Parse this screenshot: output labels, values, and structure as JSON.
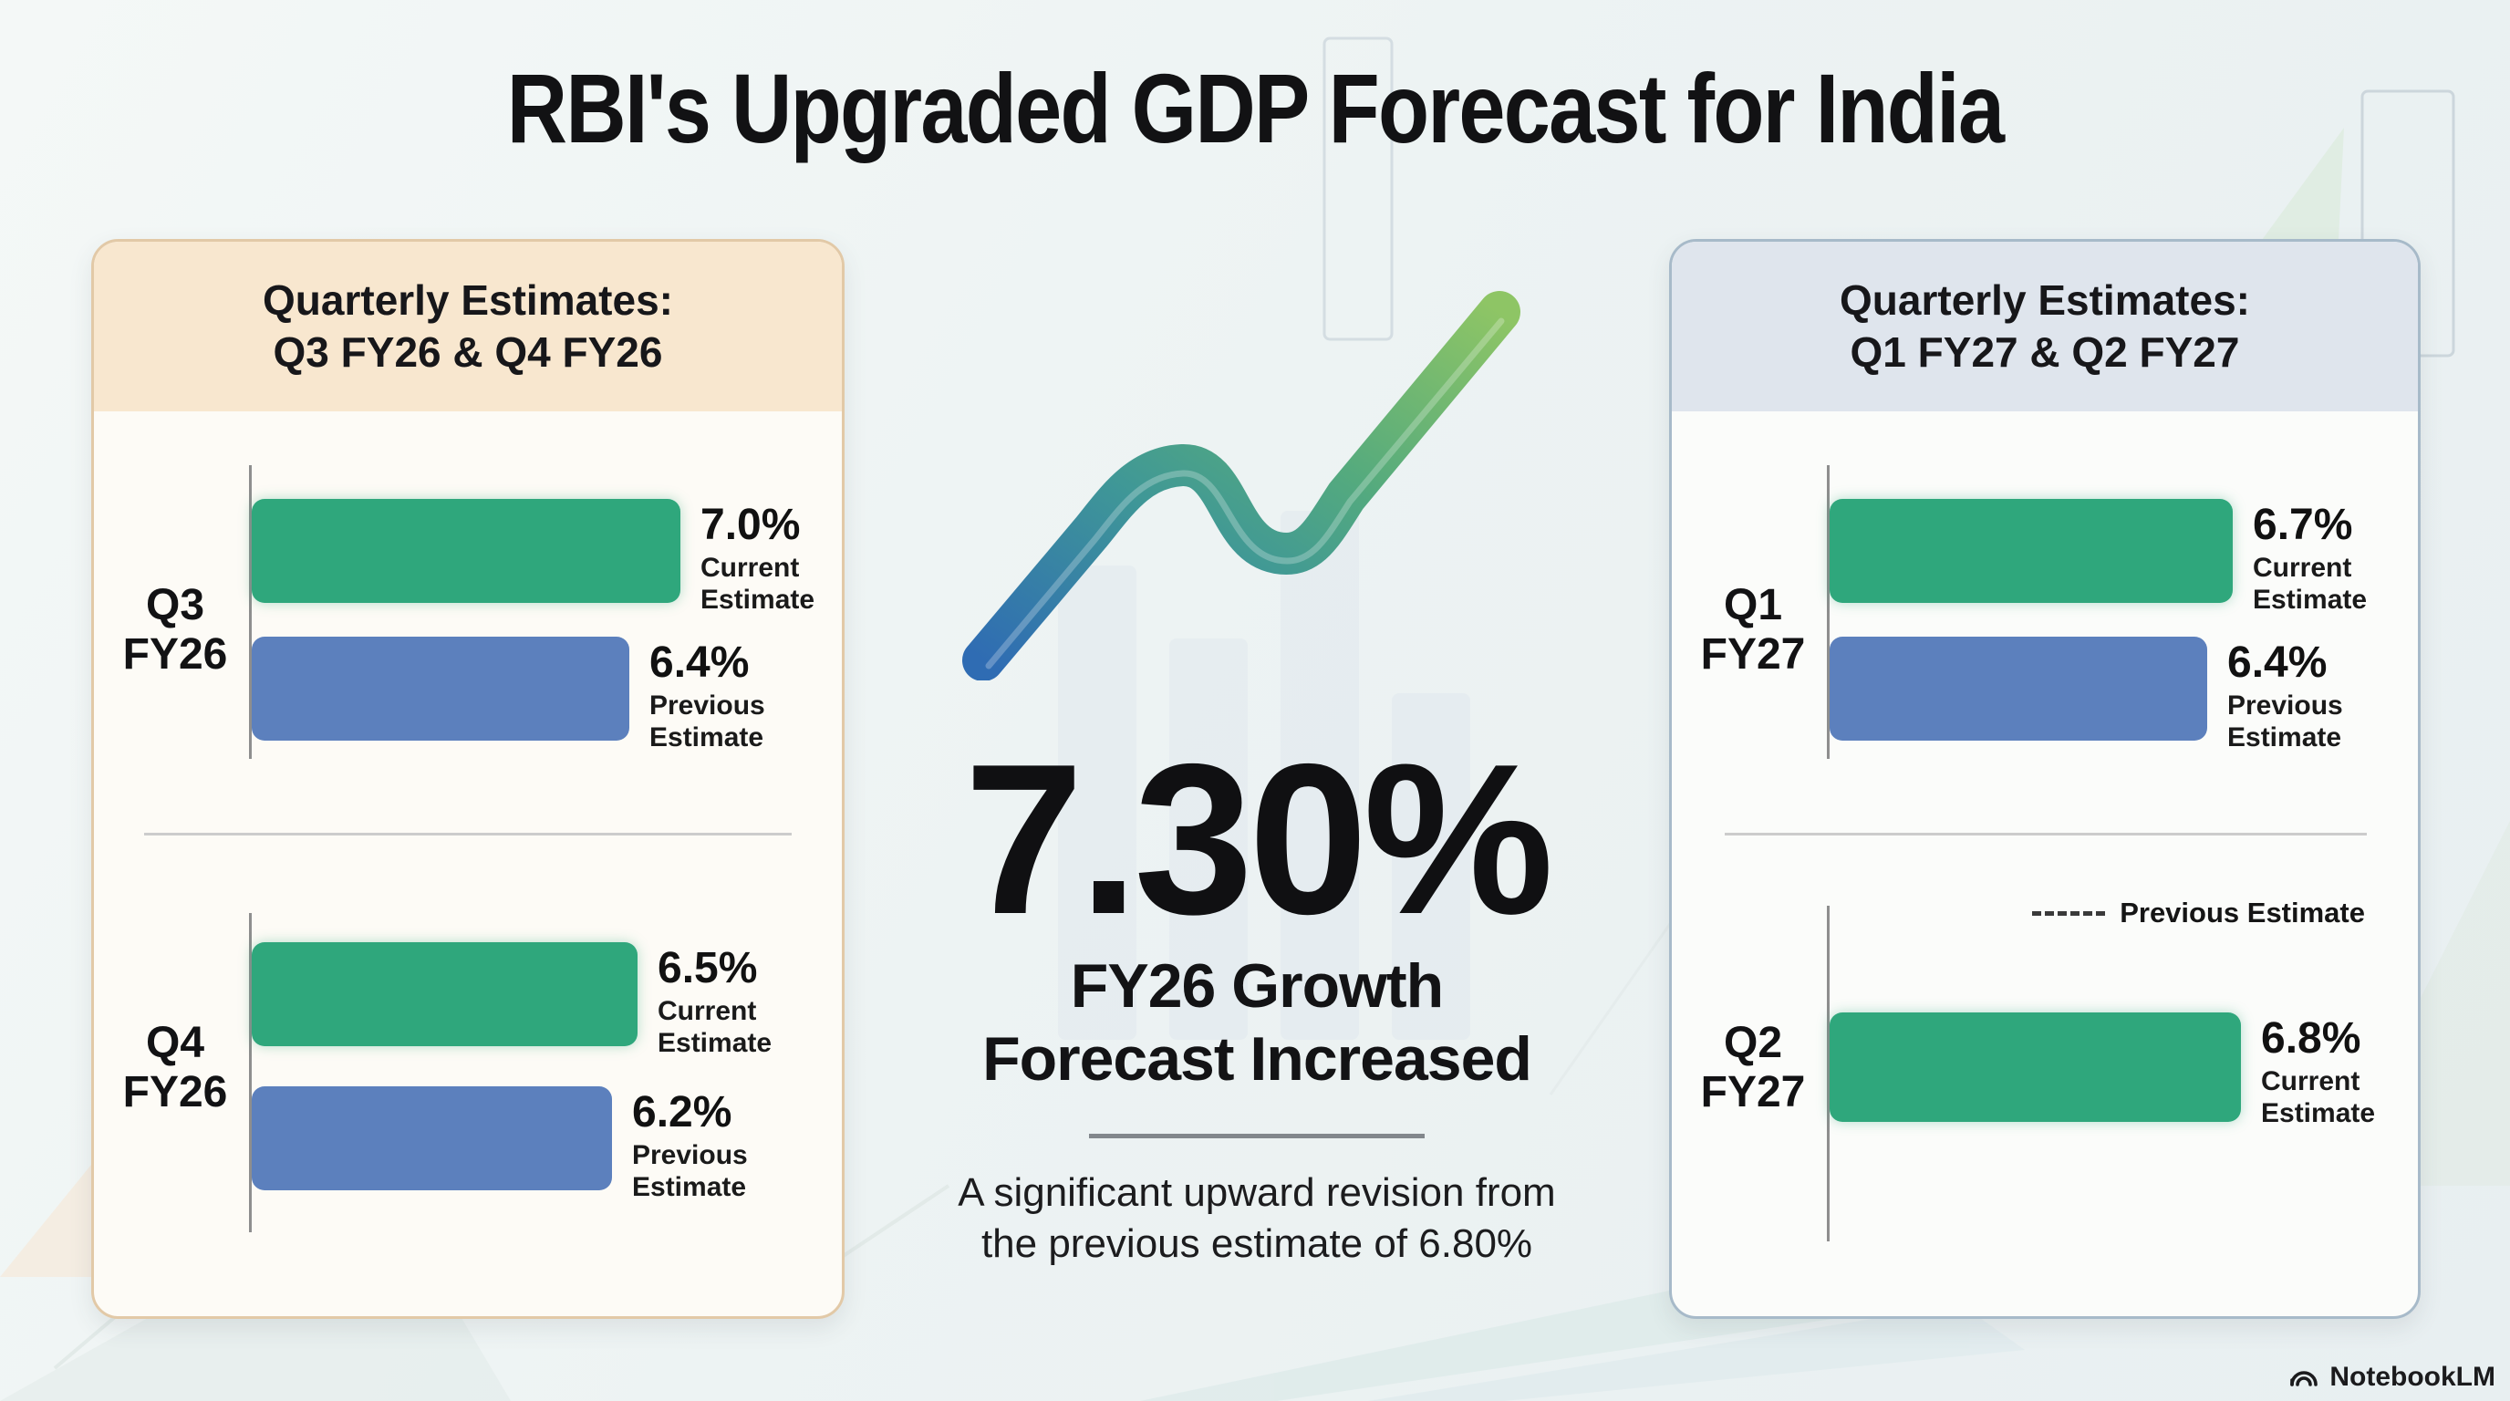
{
  "title": "RBI's Upgraded GDP Forecast for India",
  "colors": {
    "green": "#2fa77c",
    "blue": "#5c80bd",
    "left_header_bg": "#f8e7cf",
    "left_card_bg": "#fdfbf6",
    "left_card_border": "#e2c9a7",
    "right_header_bg": "#dfe5ed",
    "right_card_bg": "#fbfcfa",
    "right_card_border": "#a7bac9",
    "axis": "#8e8e8e",
    "divider": "#cccccc",
    "text": "#141416"
  },
  "panels": [
    {
      "header": [
        "Quarterly Estimates:",
        "Q3 FY26 & Q4 FY26"
      ],
      "rows": [
        {
          "quarter": [
            "Q3",
            "FY26"
          ],
          "bars": [
            {
              "value": 7.0,
              "value_label": "7.0%",
              "caption": [
                "Current",
                "Estimate"
              ],
              "color": "green"
            },
            {
              "value": 6.4,
              "value_label": "6.4%",
              "caption": [
                "Previous",
                "Estimate"
              ],
              "color": "blue"
            }
          ]
        },
        {
          "quarter": [
            "Q4",
            "FY26"
          ],
          "bars": [
            {
              "value": 6.5,
              "value_label": "6.5%",
              "caption": [
                "Current",
                "Estimate"
              ],
              "color": "green"
            },
            {
              "value": 6.2,
              "value_label": "6.2%",
              "caption": [
                "Previous",
                "Estimate"
              ],
              "color": "blue"
            }
          ]
        }
      ]
    },
    {
      "header": [
        "Quarterly Estimates:",
        "Q1 FY27 & Q2 FY27"
      ],
      "legend_label": "Previous Estimate",
      "rows": [
        {
          "quarter": [
            "Q1",
            "FY27"
          ],
          "bars": [
            {
              "value": 6.7,
              "value_label": "6.7%",
              "caption": [
                "Current",
                "Estimate"
              ],
              "color": "green"
            },
            {
              "value": 6.4,
              "value_label": "6.4%",
              "caption": [
                "Previous",
                "Estimate"
              ],
              "color": "blue"
            }
          ]
        },
        {
          "quarter": [
            "Q2",
            "FY27"
          ],
          "bars": [
            {
              "value": 6.8,
              "value_label": "6.8%",
              "caption": [
                "Current",
                "Estimate"
              ],
              "color": "green"
            }
          ]
        }
      ]
    }
  ],
  "center": {
    "big_number": "7.30%",
    "headline": [
      "FY26 Growth",
      "Forecast Increased"
    ],
    "subtitle": [
      "A significant upward revision from",
      "the previous estimate of 6.80%"
    ]
  },
  "footer": {
    "brand": "NotebookLM"
  },
  "chart_data": [
    {
      "type": "bar",
      "orientation": "horizontal",
      "title": "Quarterly Estimates: Q3 FY26 & Q4 FY26",
      "categories": [
        "Q3 FY26",
        "Q4 FY26"
      ],
      "series": [
        {
          "name": "Current Estimate",
          "values": [
            7.0,
            6.5
          ],
          "color": "#2fa77c"
        },
        {
          "name": "Previous Estimate",
          "values": [
            6.4,
            6.2
          ],
          "color": "#5c80bd"
        }
      ],
      "unit": "percent",
      "xlim": [
        0,
        8
      ],
      "grid": false,
      "value_labels": [
        "7.0%",
        "6.5%",
        "6.4%",
        "6.2%"
      ]
    },
    {
      "type": "bar",
      "orientation": "horizontal",
      "title": "Quarterly Estimates: Q1 FY27 & Q2 FY27",
      "categories": [
        "Q1 FY27",
        "Q2 FY27"
      ],
      "series": [
        {
          "name": "Current Estimate",
          "values": [
            6.7,
            6.8
          ],
          "color": "#2fa77c"
        },
        {
          "name": "Previous Estimate",
          "values": [
            6.4,
            null
          ],
          "color": "#5c80bd"
        }
      ],
      "unit": "percent",
      "xlim": [
        0,
        8
      ],
      "grid": false,
      "legend_position": "above Q2 row, dashed marker",
      "value_labels": [
        "6.7%",
        "6.4%",
        "6.8%"
      ]
    },
    {
      "type": "callout",
      "value": "7.30%",
      "label": "FY26 Growth Forecast Increased",
      "note": "A significant upward revision from the previous estimate of 6.80%",
      "previous_value": "6.80%"
    }
  ]
}
